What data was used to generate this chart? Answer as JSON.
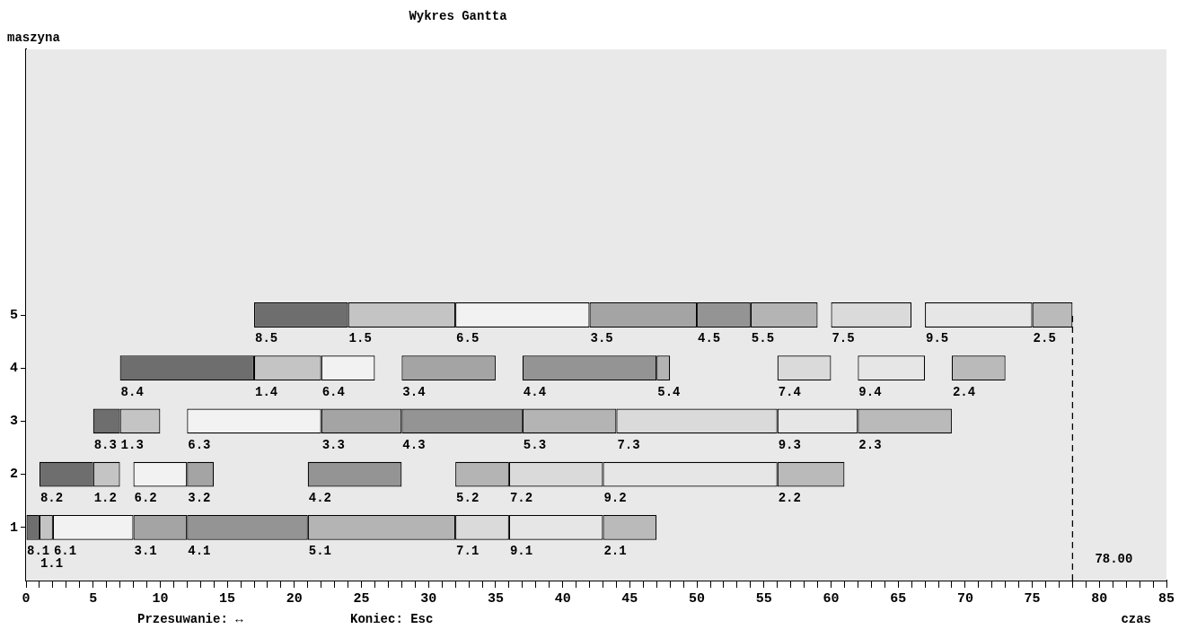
{
  "chart_data": {
    "type": "bar",
    "orientation": "horizontal",
    "title": "Wykres Gantta",
    "ylabel": "maszyna",
    "xlabel": "czas",
    "categories": [
      null,
      null,
      null,
      null,
      null,
      "5",
      "4",
      "3",
      "2",
      "1",
      null
    ],
    "series": [
      {
        "color": "#6e6e6e",
        "base": [
          null,
          null,
          null,
          null,
          null,
          17,
          7,
          5,
          1,
          0,
          null
        ],
        "values": [
          null,
          null,
          null,
          null,
          null,
          7,
          10,
          2,
          4,
          1,
          null
        ]
      },
      {
        "color": "#c4c4c4",
        "base": [
          null,
          null,
          null,
          null,
          null,
          24,
          17,
          7,
          5,
          1,
          null
        ],
        "values": [
          null,
          null,
          null,
          null,
          null,
          8,
          5,
          3,
          2,
          1,
          null
        ]
      },
      {
        "color": "#f2f2f2",
        "base": [
          null,
          null,
          null,
          null,
          null,
          32,
          22,
          12,
          8,
          2,
          null
        ],
        "values": [
          null,
          null,
          null,
          null,
          null,
          10,
          4,
          10,
          4,
          6,
          null
        ]
      },
      {
        "color": "#a4a4a4",
        "base": [
          null,
          null,
          null,
          null,
          null,
          42,
          28,
          22,
          12,
          8,
          null
        ],
        "values": [
          null,
          null,
          null,
          null,
          null,
          8,
          7,
          6,
          2,
          4,
          null
        ]
      },
      {
        "color": "#949494",
        "base": [
          null,
          null,
          null,
          null,
          null,
          50,
          37,
          28,
          21,
          12,
          null
        ],
        "values": [
          null,
          null,
          null,
          null,
          null,
          4,
          10,
          9,
          7,
          9,
          null
        ]
      },
      {
        "color": "#b4b4b4",
        "base": [
          null,
          null,
          null,
          null,
          null,
          54,
          47,
          37,
          32,
          21,
          null
        ],
        "values": [
          null,
          null,
          null,
          null,
          null,
          5,
          1,
          7,
          4,
          11,
          null
        ]
      },
      {
        "color": "#dadada",
        "base": [
          null,
          null,
          null,
          null,
          null,
          60,
          56,
          44,
          36,
          32,
          null
        ],
        "values": [
          null,
          null,
          null,
          null,
          null,
          6,
          4,
          12,
          7,
          4,
          null
        ]
      },
      {
        "color": "#e6e6e6",
        "base": [
          null,
          null,
          null,
          null,
          null,
          67,
          62,
          56,
          43,
          36,
          null
        ],
        "values": [
          null,
          null,
          null,
          null,
          null,
          8,
          5,
          6,
          13,
          7,
          null
        ]
      },
      {
        "color": "#bababa",
        "base": [
          null,
          null,
          null,
          null,
          null,
          75,
          69,
          62,
          56,
          43,
          null
        ],
        "values": [
          null,
          null,
          null,
          null,
          null,
          3,
          4,
          7,
          5,
          4,
          null
        ]
      }
    ],
    "xlim": [
      0,
      85
    ],
    "xticks": [
      0,
      {
        "value": 1,
        "label": null
      },
      {
        "value": 2,
        "label": null
      },
      {
        "value": 3,
        "label": null
      },
      {
        "value": 4,
        "label": null
      },
      5,
      {
        "value": 6,
        "label": null
      },
      {
        "value": 7,
        "label": null
      },
      {
        "value": 8,
        "label": null
      },
      {
        "value": 9,
        "label": null
      },
      10,
      {
        "value": 11,
        "label": null
      },
      {
        "value": 12,
        "label": null
      },
      {
        "value": 13,
        "label": null
      },
      {
        "value": 14,
        "label": null
      },
      15,
      {
        "value": 16,
        "label": null
      },
      {
        "value": 17,
        "label": null
      },
      {
        "value": 18,
        "label": null
      },
      {
        "value": 19,
        "label": null
      },
      20,
      {
        "value": 21,
        "label": null
      },
      {
        "value": 22,
        "label": null
      },
      {
        "value": 23,
        "label": null
      },
      {
        "value": 24,
        "label": null
      },
      25,
      {
        "value": 26,
        "label": null
      },
      {
        "value": 27,
        "label": null
      },
      {
        "value": 28,
        "label": null
      },
      {
        "value": 29,
        "label": null
      },
      30,
      {
        "value": 31,
        "label": null
      },
      {
        "value": 32,
        "label": null
      },
      {
        "value": 33,
        "label": null
      },
      {
        "value": 34,
        "label": null
      },
      35,
      {
        "value": 36,
        "label": null
      },
      {
        "value": 37,
        "label": null
      },
      {
        "value": 38,
        "label": null
      },
      {
        "value": 39,
        "label": null
      },
      40,
      {
        "value": 41,
        "label": null
      },
      {
        "value": 42,
        "label": null
      },
      {
        "value": 43,
        "label": null
      },
      {
        "value": 44,
        "label": null
      },
      45,
      {
        "value": 46,
        "label": null
      },
      {
        "value": 47,
        "label": null
      },
      {
        "value": 48,
        "label": null
      },
      {
        "value": 49,
        "label": null
      },
      50,
      {
        "value": 51,
        "label": null
      },
      {
        "value": 52,
        "label": null
      },
      {
        "value": 53,
        "label": null
      },
      {
        "value": 54,
        "label": null
      },
      55,
      {
        "value": 56,
        "label": null
      },
      {
        "value": 57,
        "label": null
      },
      {
        "value": 58,
        "label": null
      },
      {
        "value": 59,
        "label": null
      },
      60,
      {
        "value": 61,
        "label": null
      },
      {
        "value": 62,
        "label": null
      },
      {
        "value": 63,
        "label": null
      },
      {
        "value": 64,
        "label": null
      },
      65,
      {
        "value": 66,
        "label": null
      },
      {
        "value": 67,
        "label": null
      },
      {
        "value": 68,
        "label": null
      },
      {
        "value": 69,
        "label": null
      },
      70,
      {
        "value": 71,
        "label": null
      },
      {
        "value": 72,
        "label": null
      },
      {
        "value": 73,
        "label": null
      },
      {
        "value": 74,
        "label": null
      },
      75,
      {
        "value": 76,
        "label": null
      },
      {
        "value": 77,
        "label": null
      },
      {
        "value": 78,
        "label": null
      },
      {
        "value": 79,
        "label": null
      },
      80,
      {
        "value": 81,
        "label": null
      },
      {
        "value": 82,
        "label": null
      },
      {
        "value": 83,
        "label": null
      },
      {
        "value": 84,
        "label": null
      },
      85
    ],
    "ref_lines": [
      {
        "axis": "x",
        "value": 78,
        "label": "78.00",
        "line_style": "dashed",
        "color": "#000000"
      }
    ],
    "annotations": [
      "Przesuwanie: ↔",
      "Koniec: Esc",
      {
        "text": "8.5",
        "x": 17,
        "y": "5"
      },
      {
        "text": "1.5",
        "x": 24,
        "y": "5"
      },
      {
        "text": "6.5",
        "x": 32,
        "y": "5"
      },
      {
        "text": "3.5",
        "x": 42,
        "y": "5"
      },
      {
        "text": "4.5",
        "x": 50,
        "y": "5"
      },
      {
        "text": "5.5",
        "x": 54,
        "y": "5"
      },
      {
        "text": "7.5",
        "x": 60,
        "y": "5"
      },
      {
        "text": "9.5",
        "x": 67,
        "y": "5"
      },
      {
        "text": "2.5",
        "x": 75,
        "y": "5"
      },
      {
        "text": "8.4",
        "x": 7,
        "y": "4"
      },
      {
        "text": "1.4",
        "x": 17,
        "y": "4"
      },
      {
        "text": "6.4",
        "x": 22,
        "y": "4"
      },
      {
        "text": "3.4",
        "x": 28,
        "y": "4"
      },
      {
        "text": "4.4",
        "x": 37,
        "y": "4"
      },
      {
        "text": "5.4",
        "x": 47,
        "y": "4"
      },
      {
        "text": "7.4",
        "x": 56,
        "y": "4"
      },
      {
        "text": "9.4",
        "x": 62,
        "y": "4"
      },
      {
        "text": "2.4",
        "x": 69,
        "y": "4"
      },
      {
        "text": "8.3",
        "x": 5,
        "y": "3"
      },
      {
        "text": "1.3",
        "x": 7,
        "y": "3"
      },
      {
        "text": "6.3",
        "x": 12,
        "y": "3"
      },
      {
        "text": "3.3",
        "x": 22,
        "y": "3"
      },
      {
        "text": "4.3",
        "x": 28,
        "y": "3"
      },
      {
        "text": "5.3",
        "x": 37,
        "y": "3"
      },
      {
        "text": "7.3",
        "x": 44,
        "y": "3"
      },
      {
        "text": "9.3",
        "x": 56,
        "y": "3"
      },
      {
        "text": "2.3",
        "x": 62,
        "y": "3"
      },
      {
        "text": "8.2",
        "x": 1,
        "y": "2"
      },
      {
        "text": "1.2",
        "x": 5,
        "y": "2"
      },
      {
        "text": "6.2",
        "x": 8,
        "y": "2"
      },
      {
        "text": "3.2",
        "x": 12,
        "y": "2"
      },
      {
        "text": "4.2",
        "x": 21,
        "y": "2"
      },
      {
        "text": "5.2",
        "x": 32,
        "y": "2"
      },
      {
        "text": "7.2",
        "x": 36,
        "y": "2"
      },
      {
        "text": "9.2",
        "x": 43,
        "y": "2"
      },
      {
        "text": "2.2",
        "x": 56,
        "y": "2"
      },
      {
        "text": "8.1",
        "x": 0,
        "y": "1"
      },
      {
        "text": "1.1",
        "x": 1,
        "y": "1"
      },
      {
        "text": "6.1",
        "x": 2,
        "y": "1"
      },
      {
        "text": "3.1",
        "x": 8,
        "y": "1"
      },
      {
        "text": "4.1",
        "x": 12,
        "y": "1"
      },
      {
        "text": "5.1",
        "x": 21,
        "y": "1"
      },
      {
        "text": "7.1",
        "x": 32,
        "y": "1"
      },
      {
        "text": "9.1",
        "x": 36,
        "y": "1"
      },
      {
        "text": "2.1",
        "x": 43,
        "y": "1"
      }
    ],
    "grid": false,
    "legend": false
  }
}
